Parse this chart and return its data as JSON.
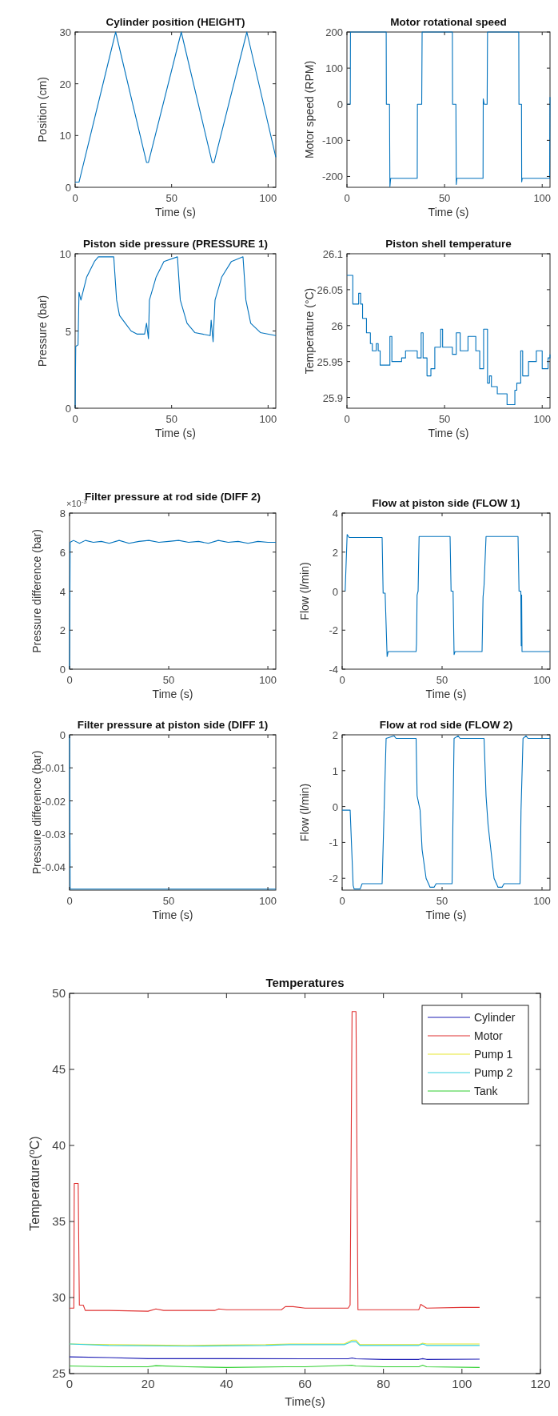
{
  "chart_data": [
    {
      "type": "line",
      "title": "Cylinder position (HEIGHT)",
      "xlabel": "Time (s)",
      "ylabel": "Position (cm)",
      "xlim": [
        0,
        104
      ],
      "xticks": [
        0,
        50,
        100
      ],
      "ylim": [
        0,
        30
      ],
      "yticks": [
        0,
        10,
        20,
        30
      ],
      "x": [
        0,
        2,
        21,
        37,
        38,
        55,
        71,
        72,
        89,
        104
      ],
      "series": [
        {
          "color": "#0072bd",
          "values": [
            1,
            1,
            30,
            4.8,
            4.8,
            30,
            4.8,
            4.8,
            30,
            5.8
          ]
        }
      ]
    },
    {
      "type": "line",
      "title": "Motor rotational speed",
      "xlabel": "Time (s)",
      "ylabel": "Motor speed (RPM)",
      "xlim": [
        0,
        104
      ],
      "xticks": [
        0,
        50,
        100
      ],
      "ylim": [
        -230,
        200
      ],
      "yticks": [
        -200,
        -100,
        0,
        100,
        200
      ],
      "x": [
        0,
        1.7,
        1.8,
        20.1,
        20.2,
        21.8,
        22,
        22.4,
        36,
        36.1,
        38.3,
        38.5,
        54,
        54.1,
        55.8,
        56,
        56.3,
        69.7,
        69.8,
        70.3,
        71.8,
        72,
        88,
        88.1,
        89.4,
        89.5,
        89.8,
        103.8,
        104
      ],
      "series": [
        {
          "color": "#0072bd",
          "values": [
            0,
            0,
            200,
            200,
            0,
            0,
            -228,
            -205,
            -205,
            0,
            0,
            200,
            200,
            0,
            0,
            -222,
            -205,
            -205,
            15,
            0,
            0,
            200,
            200,
            0,
            0,
            -215,
            -205,
            -205,
            20
          ]
        }
      ]
    },
    {
      "type": "line",
      "title": "Piston side pressure (PRESSURE 1)",
      "xlabel": "Time (s)",
      "ylabel": "Pressure (bar)",
      "xlim": [
        0,
        104
      ],
      "xticks": [
        0,
        50,
        100
      ],
      "ylim": [
        0,
        10
      ],
      "yticks": [
        0,
        5,
        10
      ],
      "x": [
        0,
        0.3,
        1.5,
        2,
        3,
        6,
        10,
        12,
        20,
        21.5,
        23,
        26,
        29,
        32,
        36,
        37,
        38,
        38.5,
        42,
        46,
        53,
        54.5,
        58,
        62,
        70,
        70.5,
        71.5,
        72.5,
        76,
        81,
        87,
        88.5,
        91,
        96,
        104
      ],
      "series": [
        {
          "color": "#0072bd",
          "values": [
            0,
            4,
            4.1,
            7.5,
            7,
            8.5,
            9.5,
            9.8,
            9.8,
            7,
            6,
            5.5,
            5,
            4.8,
            4.8,
            5.5,
            4.5,
            7,
            8.5,
            9.5,
            9.8,
            7,
            5.5,
            4.9,
            4.7,
            5.7,
            4.3,
            7,
            8.5,
            9.5,
            9.8,
            7,
            5.5,
            4.9,
            4.7
          ]
        }
      ]
    },
    {
      "type": "step",
      "title": "Piston shell temperature",
      "xlabel": "Time (s)",
      "ylabel": "Temperature (°C)",
      "xlim": [
        0,
        104
      ],
      "xticks": [
        0,
        50,
        100
      ],
      "ylim": [
        25.885,
        26.1
      ],
      "yticks": [
        25.9,
        25.95,
        26,
        26.05,
        26.1
      ],
      "x": [
        0,
        3,
        6,
        7,
        8,
        10,
        12,
        13,
        15,
        16,
        17,
        18,
        22,
        23,
        28,
        30,
        36,
        38,
        39,
        41,
        43,
        45,
        48,
        49,
        54,
        56,
        58,
        62,
        66,
        68,
        70,
        72,
        73,
        74,
        77,
        82,
        86,
        87,
        89,
        90,
        93,
        97,
        100,
        103,
        104
      ],
      "series": [
        {
          "color": "#0072bd",
          "values": [
            26.07,
            26.03,
            26.045,
            26.03,
            26.01,
            25.99,
            25.975,
            25.965,
            25.975,
            25.965,
            25.945,
            25.945,
            25.985,
            25.95,
            25.955,
            25.965,
            25.955,
            25.99,
            25.955,
            25.93,
            25.94,
            25.97,
            25.995,
            25.97,
            25.96,
            25.99,
            25.965,
            25.985,
            25.965,
            25.94,
            25.995,
            25.92,
            25.93,
            25.915,
            25.905,
            25.89,
            25.91,
            25.92,
            25.965,
            25.93,
            25.95,
            25.965,
            25.94,
            25.955,
            25.96
          ]
        }
      ]
    },
    {
      "type": "line",
      "title": "Filter pressure at rod side (DIFF 2)",
      "xlabel": "Time (s)",
      "ylabel": "Pressure difference (bar)",
      "annotations": [
        "×10$^{-3}$"
      ],
      "xlim": [
        0,
        104
      ],
      "xticks": [
        0,
        50,
        100
      ],
      "ylim": [
        0,
        8
      ],
      "yticks": [
        0,
        2,
        4,
        6,
        8
      ],
      "x": [
        0,
        0.3,
        2,
        5,
        8,
        12,
        16,
        20,
        25,
        30,
        35,
        40,
        45,
        50,
        55,
        60,
        65,
        70,
        75,
        80,
        85,
        90,
        95,
        100,
        104
      ],
      "series": [
        {
          "color": "#0072bd",
          "values": [
            0,
            6.5,
            6.6,
            6.45,
            6.6,
            6.5,
            6.55,
            6.45,
            6.6,
            6.45,
            6.55,
            6.6,
            6.5,
            6.55,
            6.6,
            6.5,
            6.55,
            6.45,
            6.6,
            6.5,
            6.55,
            6.45,
            6.55,
            6.5,
            6.5
          ]
        }
      ]
    },
    {
      "type": "line",
      "title": "Flow at piston side (FLOW 1)",
      "xlabel": "Time (s)",
      "ylabel": "Flow (l/min)",
      "xlim": [
        0,
        104
      ],
      "xticks": [
        0,
        50,
        100
      ],
      "ylim": [
        -4,
        4
      ],
      "yticks": [
        -4,
        -2,
        0,
        2,
        4
      ],
      "x": [
        0,
        1.5,
        2.5,
        3.5,
        20,
        20.5,
        21.5,
        22.5,
        23,
        37,
        37.2,
        37.5,
        38,
        38.5,
        54,
        54.5,
        55.5,
        56,
        56.5,
        70,
        70.5,
        71,
        72,
        88,
        88.5,
        89.4,
        89.6,
        89.8,
        90,
        104
      ],
      "series": [
        {
          "color": "#0072bd",
          "values": [
            0,
            0,
            2.9,
            2.75,
            2.75,
            -0.1,
            -0.1,
            -3.35,
            -3.1,
            -3.1,
            -2.7,
            -0.2,
            0,
            2.8,
            2.8,
            0,
            0,
            -3.25,
            -3.1,
            -3.1,
            -0.3,
            0.3,
            2.8,
            2.8,
            0,
            0,
            -2.8,
            -0.2,
            -3.1,
            -3.1
          ]
        }
      ]
    },
    {
      "type": "line",
      "title": "Filter pressure at piston side (DIFF 1)",
      "xlabel": "Time (s)",
      "ylabel": "Pressure difference (bar)",
      "xlim": [
        0,
        104
      ],
      "xticks": [
        0,
        50,
        100
      ],
      "ylim": [
        -0.047,
        0
      ],
      "yticks": [
        -0.04,
        -0.03,
        -0.02,
        -0.01,
        0
      ],
      "x": [
        0,
        0.3,
        104
      ],
      "series": [
        {
          "color": "#0072bd",
          "values": [
            0,
            -0.0467,
            -0.0467
          ]
        }
      ]
    },
    {
      "type": "line",
      "title": "Flow at rod side (FLOW 2)",
      "xlabel": "Time (s)",
      "ylabel": "Flow (l/min)",
      "xlim": [
        0,
        104
      ],
      "xticks": [
        0,
        50,
        100
      ],
      "ylim": [
        -2.33,
        2
      ],
      "yticks": [
        -2,
        -1,
        0,
        1,
        2
      ],
      "x": [
        0,
        4,
        5.5,
        6,
        9,
        10,
        20,
        21,
        22,
        26,
        27,
        37,
        37.5,
        39,
        40,
        42,
        44,
        46,
        47,
        55,
        55.5,
        56,
        58,
        59,
        71,
        72,
        73,
        76,
        78,
        80,
        81,
        89,
        89.5,
        90.5,
        92,
        93,
        104
      ],
      "series": [
        {
          "color": "#0072bd",
          "values": [
            -0.1,
            -0.1,
            -2.2,
            -2.3,
            -2.3,
            -2.15,
            -2.15,
            -0.1,
            1.9,
            1.97,
            1.9,
            1.9,
            0.3,
            -0.1,
            -1.2,
            -2,
            -2.25,
            -2.25,
            -2.15,
            -2.15,
            -0.1,
            1.9,
            1.97,
            1.9,
            1.9,
            0.3,
            -0.5,
            -2,
            -2.25,
            -2.25,
            -2.15,
            -2.15,
            -0.1,
            1.9,
            1.97,
            1.9,
            1.9
          ]
        }
      ]
    },
    {
      "type": "line",
      "title": "Temperatures",
      "xlabel": "Time(s)",
      "ylabel": "Temperature($^{o}$C)",
      "xlim": [
        0,
        120
      ],
      "xticks": [
        0,
        20,
        40,
        60,
        80,
        100,
        120
      ],
      "ylim": [
        25,
        50
      ],
      "yticks": [
        25,
        30,
        35,
        40,
        45,
        50
      ],
      "legend": "top right",
      "series": [
        {
          "name": "Cylinder",
          "color": "#1c1cb4",
          "x": [
            0,
            10,
            20,
            40,
            60,
            71,
            72,
            73,
            80,
            89,
            90,
            91,
            104.5
          ],
          "values": [
            26.1,
            26.05,
            25.98,
            25.98,
            25.97,
            25.97,
            26.03,
            25.97,
            25.93,
            25.93,
            25.98,
            25.93,
            25.95
          ]
        },
        {
          "name": "Motor",
          "color": "#e03030",
          "x": [
            0,
            1.1,
            1.2,
            2.2,
            2.5,
            3.5,
            4,
            10,
            20,
            22,
            24,
            30,
            37,
            38,
            40,
            50,
            54,
            55,
            57,
            60,
            71,
            71.5,
            72,
            73,
            73.5,
            80,
            89,
            89.5,
            91,
            100,
            104.5
          ],
          "values": [
            29.3,
            29.3,
            37.5,
            37.5,
            29.5,
            29.5,
            29.15,
            29.15,
            29.1,
            29.25,
            29.15,
            29.15,
            29.15,
            29.25,
            29.2,
            29.2,
            29.2,
            29.4,
            29.4,
            29.3,
            29.3,
            29.5,
            48.8,
            48.8,
            29.2,
            29.2,
            29.2,
            29.55,
            29.3,
            29.35,
            29.35
          ]
        },
        {
          "name": "Pump 1",
          "color": "#e8e830",
          "x": [
            0,
            10,
            30,
            50,
            56,
            70,
            72,
            73,
            74,
            89,
            90,
            91,
            104.5
          ],
          "values": [
            26.95,
            26.9,
            26.85,
            26.9,
            26.95,
            26.95,
            27.2,
            27.2,
            26.9,
            26.9,
            27.0,
            26.95,
            26.95
          ]
        },
        {
          "name": "Pump 2",
          "color": "#30d0e0",
          "x": [
            0,
            10,
            30,
            50,
            56,
            70,
            72,
            73,
            74,
            89,
            90,
            91,
            104.5
          ],
          "values": [
            26.95,
            26.85,
            26.8,
            26.85,
            26.9,
            26.9,
            27.1,
            27.1,
            26.85,
            26.85,
            26.95,
            26.85,
            26.85
          ]
        },
        {
          "name": "Tank",
          "color": "#30d030",
          "x": [
            0,
            10,
            20,
            22,
            30,
            40,
            55,
            60,
            72,
            73,
            80,
            89,
            90,
            91,
            104.5
          ],
          "values": [
            25.5,
            25.45,
            25.45,
            25.52,
            25.45,
            25.4,
            25.45,
            25.45,
            25.55,
            25.5,
            25.45,
            25.45,
            25.55,
            25.45,
            25.4
          ]
        }
      ]
    }
  ]
}
